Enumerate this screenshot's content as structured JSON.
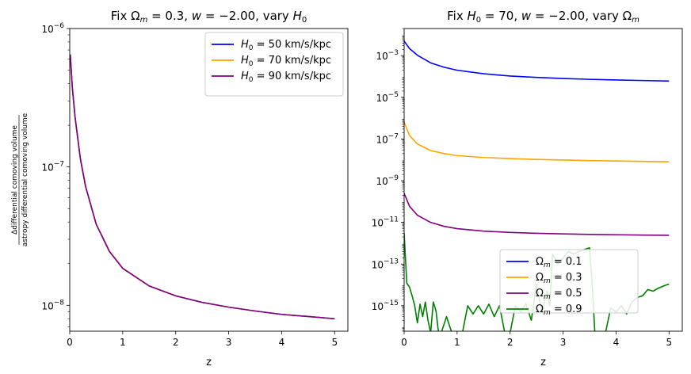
{
  "chart_data": [
    {
      "type": "line",
      "title": "Fix Ωm = 0.3, w = −2.00, vary H0",
      "xlabel": "z",
      "ylabel_num": "Δdifferential comoving volume",
      "ylabel_den": "astropy differential comoving volume",
      "yscale": "log",
      "xlim": [
        0,
        5.25
      ],
      "ylim": [
        6.5e-09,
        1e-06
      ],
      "x_ticks": [
        0,
        1,
        2,
        3,
        4,
        5
      ],
      "y_ticks": [
        {
          "value": 1e-06,
          "base": "10",
          "exp": "−6"
        },
        {
          "value": 1e-07,
          "base": "10",
          "exp": "−7"
        },
        {
          "value": 1e-08,
          "base": "10",
          "exp": "−8"
        }
      ],
      "legend_position": "upper right",
      "legend_ncol": 1,
      "series": [
        {
          "name": "H0 = 50 km/s/kpc",
          "legend_main": "H",
          "legend_sub": "0",
          "legend_rest": " = 50 km/s/kpc",
          "color": "#0000ff",
          "x": [
            0.01,
            0.05,
            0.1,
            0.2,
            0.3,
            0.5,
            0.75,
            1,
            1.5,
            2,
            2.5,
            3,
            3.5,
            4,
            4.5,
            5
          ],
          "y": [
            6.5e-07,
            3.7e-07,
            2.3e-07,
            1.15e-07,
            7.2e-08,
            3.85e-08,
            2.45e-08,
            1.85e-08,
            1.38e-08,
            1.17e-08,
            1.05e-08,
            9.7e-09,
            9.1e-09,
            8.6e-09,
            8.3e-09,
            8e-09
          ]
        },
        {
          "name": "H0 = 70 km/s/kpc",
          "legend_main": "H",
          "legend_sub": "0",
          "legend_rest": " = 70 km/s/kpc",
          "color": "#ffa500",
          "x": [
            0.01,
            0.05,
            0.1,
            0.2,
            0.3,
            0.5,
            0.75,
            1,
            1.5,
            2,
            2.5,
            3,
            3.5,
            4,
            4.5,
            5
          ],
          "y": [
            6.5e-07,
            3.7e-07,
            2.3e-07,
            1.15e-07,
            7.2e-08,
            3.85e-08,
            2.45e-08,
            1.85e-08,
            1.38e-08,
            1.17e-08,
            1.05e-08,
            9.7e-09,
            9.1e-09,
            8.6e-09,
            8.3e-09,
            8e-09
          ]
        },
        {
          "name": "H0 = 90 km/s/kpc",
          "legend_main": "H",
          "legend_sub": "0",
          "legend_rest": " = 90 km/s/kpc",
          "color": "#800080",
          "x": [
            0.01,
            0.05,
            0.1,
            0.2,
            0.3,
            0.5,
            0.75,
            1,
            1.5,
            2,
            2.5,
            3,
            3.5,
            4,
            4.5,
            5
          ],
          "y": [
            6.5e-07,
            3.7e-07,
            2.3e-07,
            1.15e-07,
            7.2e-08,
            3.85e-08,
            2.45e-08,
            1.85e-08,
            1.38e-08,
            1.17e-08,
            1.05e-08,
            9.7e-09,
            9.1e-09,
            8.6e-09,
            8.3e-09,
            8e-09
          ]
        }
      ]
    },
    {
      "type": "line",
      "title": "Fix H0 = 70, w = −2.00, vary Ωm",
      "xlabel": "z",
      "ylabel": "",
      "yscale": "log",
      "xlim": [
        0,
        5.25
      ],
      "ylim": [
        6e-17,
        0.02
      ],
      "x_ticks": [
        0,
        1,
        2,
        3,
        4,
        5
      ],
      "y_ticks": [
        {
          "value": 0.001,
          "base": "10",
          "exp": "−3"
        },
        {
          "value": 1e-05,
          "base": "10",
          "exp": "−5"
        },
        {
          "value": 1e-07,
          "base": "10",
          "exp": "−7"
        },
        {
          "value": 1e-09,
          "base": "10",
          "exp": "−9"
        },
        {
          "value": 1e-11,
          "base": "10",
          "exp": "−11"
        },
        {
          "value": 1e-13,
          "base": "10",
          "exp": "−13"
        },
        {
          "value": 1e-15,
          "base": "10",
          "exp": "−15"
        }
      ],
      "legend_position": "lower center",
      "legend_ncol": 1,
      "series": [
        {
          "name": "Ωm = 0.1",
          "legend_main": "Ω",
          "legend_sub": "m",
          "legend_rest": " = 0.1",
          "color": "#0000ff",
          "x": [
            0,
            0.1,
            0.25,
            0.5,
            0.75,
            1,
            1.5,
            2,
            2.5,
            3,
            3.5,
            4,
            4.5,
            5
          ],
          "y": [
            0.005,
            0.0022,
            0.00105,
            0.00045,
            0.00028,
            0.0002,
            0.000135,
            0.000105,
            9e-05,
            8e-05,
            7.3e-05,
            6.8e-05,
            6.4e-05,
            6e-05
          ]
        },
        {
          "name": "Ωm = 0.3",
          "legend_main": "Ω",
          "legend_sub": "m",
          "legend_rest": " = 0.3",
          "color": "#ffa500",
          "x": [
            0,
            0.1,
            0.25,
            0.5,
            0.75,
            1,
            1.5,
            2,
            2.5,
            3,
            3.5,
            4,
            4.5,
            5
          ],
          "y": [
            6.5e-07,
            1.5e-07,
            5.8e-08,
            2.8e-08,
            2e-08,
            1.6e-08,
            1.3e-08,
            1.15e-08,
            1.05e-08,
            9.8e-09,
            9.2e-09,
            8.8e-09,
            8.4e-09,
            8.1e-09
          ]
        },
        {
          "name": "Ωm = 0.5",
          "legend_main": "Ω",
          "legend_sub": "m",
          "legend_rest": " = 0.5",
          "color": "#800080",
          "x": [
            0,
            0.1,
            0.25,
            0.5,
            0.75,
            1,
            1.5,
            2,
            2.5,
            3,
            3.5,
            4,
            4.5,
            5
          ],
          "y": [
            2.5e-10,
            6e-11,
            2.2e-11,
            1e-11,
            6.5e-12,
            5e-12,
            3.8e-12,
            3.3e-12,
            3e-12,
            2.8e-12,
            2.65e-12,
            2.55e-12,
            2.45e-12,
            2.4e-12
          ]
        },
        {
          "name": "Ωm = 0.9",
          "legend_main": "Ω",
          "legend_sub": "m",
          "legend_rest": " = 0.9",
          "color": "#008000",
          "x": [
            0,
            0.05,
            0.1,
            0.15,
            0.2,
            0.25,
            0.3,
            0.35,
            0.4,
            0.45,
            0.5,
            0.55,
            0.6,
            0.65,
            0.7,
            0.8,
            0.9,
            1.0,
            1.1,
            1.2,
            1.3,
            1.4,
            1.5,
            1.6,
            1.7,
            1.8,
            1.9,
            2.0,
            2.1,
            2.2,
            2.3,
            2.4,
            2.5,
            2.6,
            2.7,
            2.75,
            2.8,
            2.9,
            3.0,
            3.1,
            3.2,
            3.3,
            3.4,
            3.5,
            3.55,
            3.6,
            3.7,
            3.8,
            3.9,
            4.0,
            4.1,
            4.2,
            4.3,
            4.4,
            4.5,
            4.6,
            4.7,
            4.8,
            4.9,
            5.0
          ],
          "y": [
            3e-12,
            1.2e-14,
            8e-15,
            3e-15,
            1e-15,
            1.5e-16,
            1.2e-15,
            3e-16,
            1.5e-15,
            2e-16,
            5e-17,
            1.5e-15,
            6e-16,
            5e-17,
            5e-17,
            3e-16,
            5e-17,
            5e-17,
            5e-17,
            1e-15,
            4e-16,
            1e-15,
            4e-16,
            1.2e-15,
            3e-16,
            1e-15,
            5e-17,
            5e-17,
            1e-15,
            5e-16,
            1.3e-15,
            2e-16,
            1e-14,
            5e-16,
            5e-15,
            1e-15,
            3e-13,
            1e-13,
            2e-13,
            4e-13,
            3e-13,
            4e-13,
            5e-13,
            6e-13,
            1e-14,
            5e-17,
            5e-17,
            5e-17,
            8e-16,
            5e-16,
            1e-15,
            4e-16,
            1.5e-15,
            2.5e-15,
            3e-15,
            6e-15,
            5e-15,
            7e-15,
            9e-15,
            1.1e-14
          ]
        }
      ]
    }
  ]
}
